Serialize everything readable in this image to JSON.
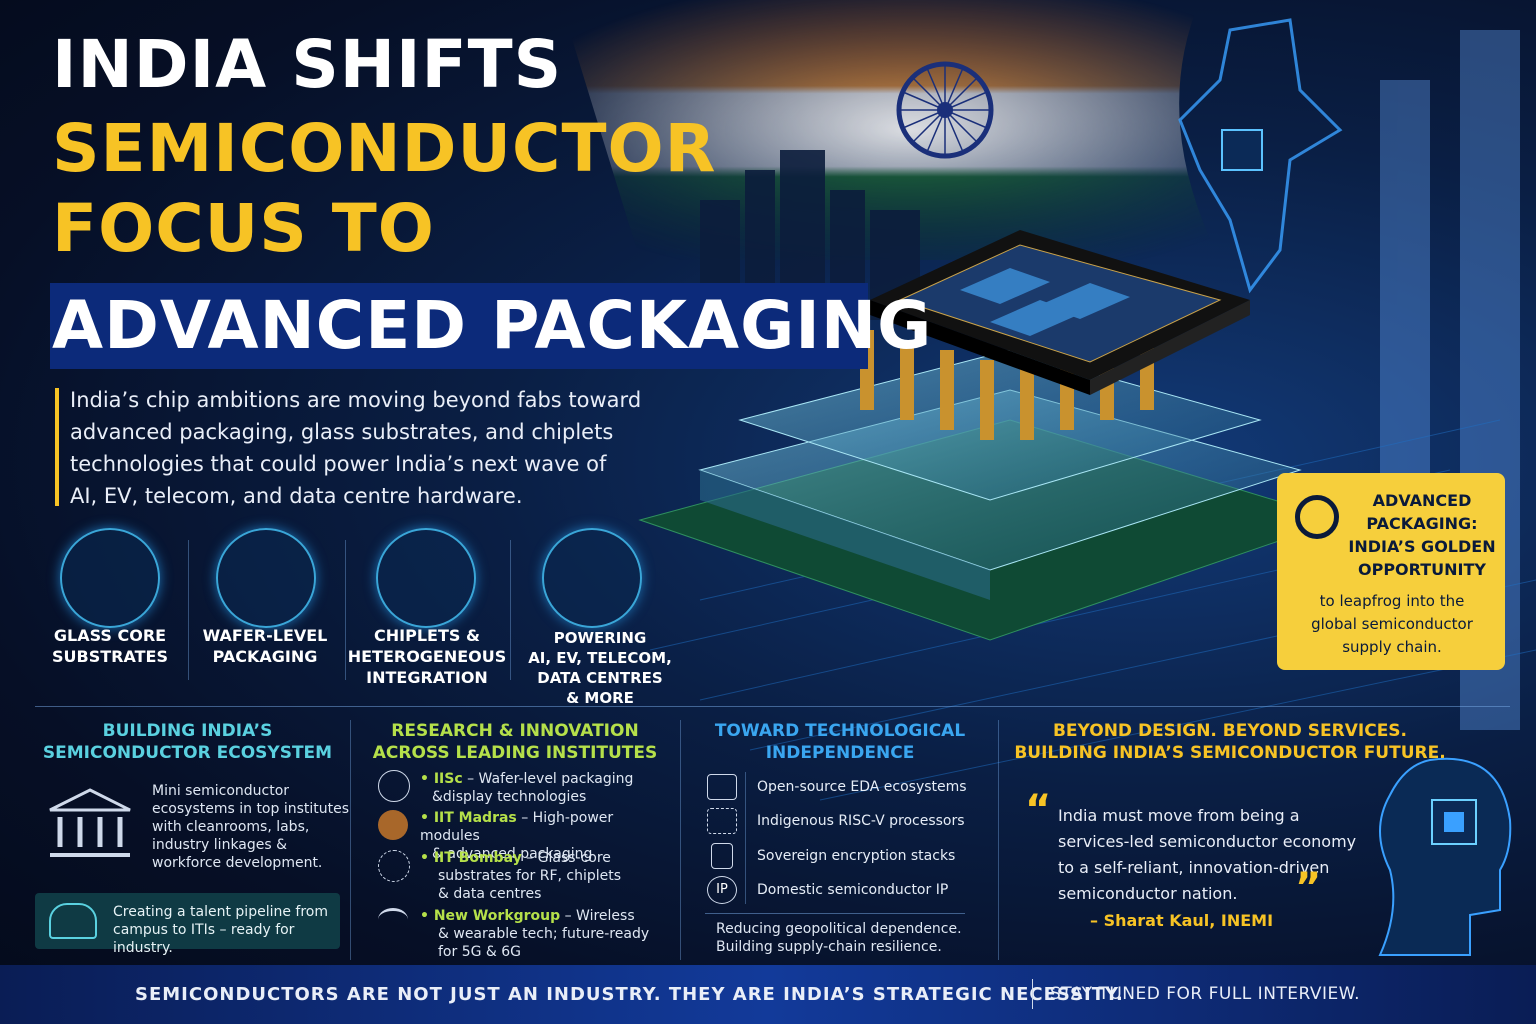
{
  "header": {
    "lines": [
      "INDIA SHIFTS",
      "SEMICONDUCTOR",
      "FOCUS TO",
      "ADVANCED PACKAGING"
    ]
  },
  "intro": [
    "India’s chip ambitions are moving beyond fabs toward",
    "advanced packaging, glass substrates, and chiplets",
    "technologies that could power India’s next wave of",
    "AI, EV, telecom, and data centre hardware."
  ],
  "features": [
    {
      "label": [
        "GLASS CORE",
        "SUBSTRATES"
      ]
    },
    {
      "label": [
        "WAFER-LEVEL",
        "PACKAGING"
      ]
    },
    {
      "label": [
        "CHIPLETS &",
        "HETEROGENEOUS",
        "INTEGRATION"
      ]
    },
    {
      "label": [
        "POWERING",
        "AI, EV, TELECOM,",
        "DATA CENTRES",
        "& MORE"
      ]
    }
  ],
  "callout": {
    "title": [
      "ADVANCED",
      "PACKAGING:",
      "INDIA’S GOLDEN",
      "OPPORTUNITY"
    ],
    "body": [
      "to leapfrog into the",
      "global semiconductor",
      "supply chain."
    ]
  },
  "ecosystem": {
    "title": [
      "BUILDING INDIA’S",
      "SEMICONDUCTOR ECOSYSTEM"
    ],
    "body": [
      "Mini semiconductor",
      "ecosystems in top institutes",
      "with cleanrooms, labs,",
      "industry linkages &",
      "workforce development."
    ],
    "talent": [
      "Creating a talent pipeline from",
      "campus to ITIs – ready for industry."
    ]
  },
  "research": {
    "title": [
      "RESEARCH & INNOVATION",
      "ACROSS LEADING INSTITUTES"
    ],
    "items": [
      {
        "institute": "IISc",
        "text": [
          "– Wafer-level packaging",
          "&display technologies"
        ]
      },
      {
        "institute": "IIT Madras",
        "text": [
          "– High-power modules",
          "& advanced packaging"
        ]
      },
      {
        "institute": "IIT Bombay",
        "text": [
          "– Glass-core",
          "substrates for RF, chiplets",
          "& data centres"
        ]
      },
      {
        "institute": "New Workgroup",
        "text": [
          "– Wireless",
          "& wearable tech; future-ready",
          "for 5G & 6G"
        ]
      }
    ]
  },
  "independence": {
    "title": [
      "TOWARD TECHNOLOGICAL",
      "INDEPENDENCE"
    ],
    "items": [
      "Open-source EDA ecosystems",
      "Indigenous RISC-V processors",
      "Sovereign encryption stacks",
      "Domestic semiconductor IP"
    ],
    "ip_icon": "IP",
    "footer": [
      "Reducing geopolitical dependence.",
      "Building supply-chain resilience."
    ]
  },
  "future": {
    "title": [
      "BEYOND DESIGN. BEYOND SERVICES.",
      "BUILDING INDIA’S SEMICONDUCTOR FUTURE."
    ],
    "marks": [
      "“",
      "”"
    ],
    "quote": [
      "India must move from being a",
      "services-led semiconductor economy",
      "to a self-reliant, innovation-driven",
      "semiconductor nation."
    ],
    "attribution": "– Sharat Kaul, INEMI"
  },
  "banner": {
    "statement": "SEMICONDUCTORS ARE NOT JUST AN INDUSTRY. THEY ARE INDIA’S STRATEGIC NECESSITY.",
    "cta": "STAY TUNED FOR FULL INTERVIEW."
  }
}
